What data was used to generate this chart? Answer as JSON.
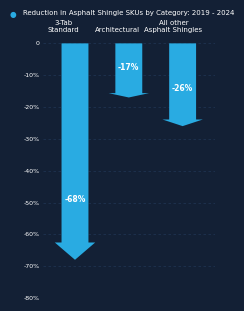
{
  "title": "Reduction in Asphalt Shingle SKUs by Category: 2019 - 2024",
  "categories": [
    "3-Tab\nStandard",
    "Architectural",
    "All other\nAsphalt Shingles"
  ],
  "values": [
    -68,
    -17,
    -26
  ],
  "bar_color": "#29ABE2",
  "background_color": "#132035",
  "text_color": "#ffffff",
  "grid_color": "#1e3350",
  "title_dot_color": "#29ABE2",
  "ylim": [
    -80,
    2
  ],
  "yticks": [
    0,
    -10,
    -20,
    -30,
    -40,
    -50,
    -60,
    -70,
    -80
  ],
  "ytick_labels": [
    "0",
    "-10%",
    "-20%",
    "-30%",
    "-40%",
    "-50%",
    "-60%",
    "-70%",
    "-80%"
  ],
  "bar_width": 0.5,
  "label_fontsize": 5.0,
  "tick_fontsize": 4.5,
  "title_fontsize": 5.0,
  "value_fontsize": 5.5
}
